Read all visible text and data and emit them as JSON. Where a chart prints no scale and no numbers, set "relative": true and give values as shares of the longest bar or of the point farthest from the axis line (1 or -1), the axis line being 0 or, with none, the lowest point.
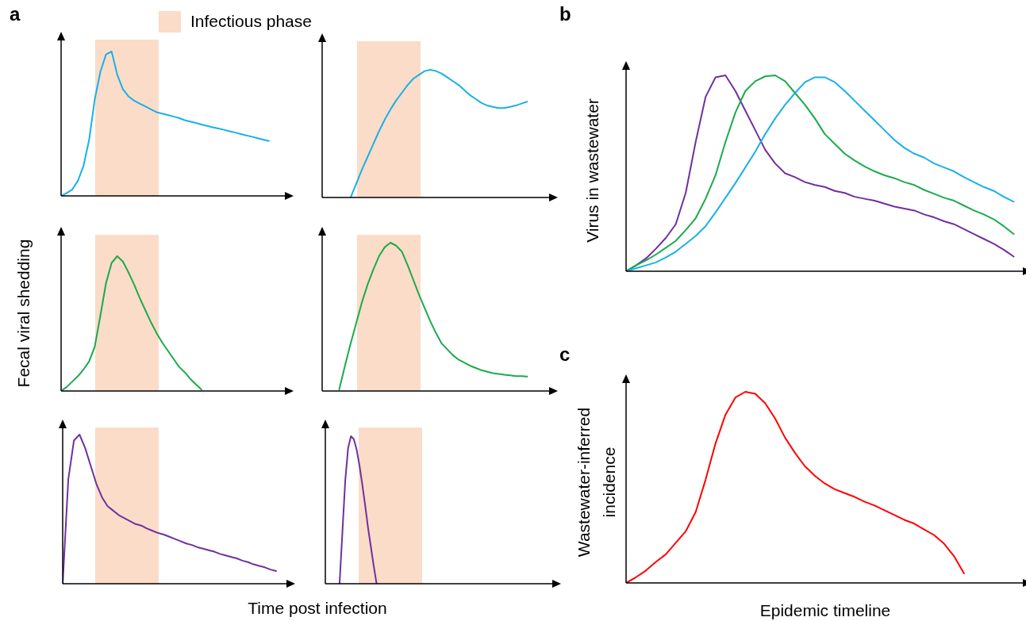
{
  "chart_data": [
    {
      "type": "line",
      "relative": true,
      "annotations": [
        "a",
        "Infectious phase"
      ],
      "tick_labels": false,
      "categories": [
        null,
        null,
        null,
        null,
        null,
        null,
        null,
        null,
        null,
        null,
        null,
        null,
        null,
        null,
        null,
        null,
        null,
        null,
        null,
        null,
        null,
        null,
        null,
        null,
        null,
        null,
        null,
        null,
        null,
        null,
        null,
        null,
        null,
        null,
        null,
        null,
        null,
        null,
        null,
        null,
        null
      ],
      "series": [
        {
          "color": "#1ab0e8",
          "values": [
            0,
            0.02,
            0.045,
            0.105,
            0.21,
            0.39,
            0.67,
            0.86,
            0.98,
            1,
            0.84,
            0.74,
            0.69,
            0.66,
            0.64,
            0.62,
            0.6,
            0.58,
            0.57,
            0.56,
            0.55,
            0.54,
            0.525,
            0.515,
            0.505,
            0.495,
            0.485,
            0.475,
            0.467,
            0.458,
            0.448,
            0.439,
            0.429,
            0.419,
            0.41,
            0.4,
            0.39,
            0.38,
            null,
            null,
            null
          ]
        }
      ]
    },
    {
      "type": "line",
      "relative": true,
      "tick_labels": false,
      "categories": [
        null,
        null,
        null,
        null,
        null,
        null,
        null,
        null,
        null,
        null,
        null,
        null,
        null,
        null,
        null,
        null,
        null,
        null,
        null,
        null,
        null,
        null,
        null,
        null,
        null,
        null,
        null,
        null,
        null,
        null,
        null,
        null,
        null,
        null,
        null,
        null,
        null,
        null,
        null,
        null,
        null
      ],
      "series": [
        {
          "color": "#1ab0e8",
          "values": [
            null,
            null,
            null,
            null,
            null,
            0,
            0.11,
            0.22,
            0.32,
            0.42,
            0.52,
            0.61,
            0.69,
            0.76,
            0.82,
            0.88,
            0.93,
            0.96,
            0.99,
            1,
            0.99,
            0.97,
            0.94,
            0.91,
            0.88,
            0.84,
            0.8,
            0.77,
            0.74,
            0.72,
            0.71,
            0.7,
            0.7,
            0.71,
            0.72,
            0.735,
            0.75,
            null,
            null,
            null,
            null
          ]
        }
      ]
    },
    {
      "type": "line",
      "relative": true,
      "ylabel": "Fecal viral shedding",
      "tick_labels": false,
      "categories": [
        null,
        null,
        null,
        null,
        null,
        null,
        null,
        null,
        null,
        null,
        null,
        null,
        null,
        null,
        null,
        null,
        null,
        null,
        null,
        null,
        null,
        null,
        null,
        null,
        null,
        null,
        null,
        null,
        null,
        null,
        null,
        null,
        null,
        null,
        null,
        null,
        null,
        null,
        null,
        null,
        null
      ],
      "series": [
        {
          "color": "#1aab4b",
          "values": [
            0,
            0.03,
            0.07,
            0.11,
            0.16,
            0.22,
            0.33,
            0.56,
            0.8,
            0.95,
            1,
            0.96,
            0.88,
            0.79,
            0.69,
            0.6,
            0.51,
            0.43,
            0.36,
            0.3,
            0.24,
            0.18,
            0.14,
            0.09,
            0.05,
            0.01,
            null,
            null,
            null,
            null,
            null,
            null,
            null,
            null,
            null,
            null,
            null,
            null,
            null,
            null,
            null
          ]
        }
      ]
    },
    {
      "type": "line",
      "relative": true,
      "tick_labels": false,
      "categories": [
        null,
        null,
        null,
        null,
        null,
        null,
        null,
        null,
        null,
        null,
        null,
        null,
        null,
        null,
        null,
        null,
        null,
        null,
        null,
        null,
        null,
        null,
        null,
        null,
        null,
        null,
        null,
        null,
        null,
        null,
        null,
        null,
        null,
        null,
        null,
        null,
        null,
        null,
        null,
        null,
        null
      ],
      "series": [
        {
          "color": "#1aab4b",
          "values": [
            null,
            null,
            null,
            0.01,
            0.17,
            0.32,
            0.46,
            0.6,
            0.72,
            0.82,
            0.91,
            0.97,
            1,
            0.98,
            0.94,
            0.85,
            0.75,
            0.65,
            0.56,
            0.47,
            0.39,
            0.32,
            0.28,
            0.24,
            0.21,
            0.19,
            0.17,
            0.155,
            0.14,
            0.13,
            0.12,
            0.115,
            0.11,
            0.105,
            0.1,
            0.1,
            0.097,
            null,
            null,
            null,
            null
          ]
        }
      ]
    },
    {
      "type": "line",
      "relative": true,
      "xlabel": "Time post infection",
      "tick_labels": false,
      "categories": [
        null,
        null,
        null,
        null,
        null,
        null,
        null,
        null,
        null,
        null,
        null,
        null,
        null,
        null,
        null,
        null,
        null,
        null,
        null,
        null,
        null,
        null,
        null,
        null,
        null,
        null,
        null,
        null,
        null,
        null,
        null,
        null,
        null,
        null,
        null,
        null,
        null,
        null,
        null,
        null,
        null
      ],
      "series": [
        {
          "color": "#7030a0",
          "values": [
            0,
            0.7,
            0.96,
            1,
            0.91,
            0.79,
            0.67,
            0.58,
            0.52,
            0.49,
            0.46,
            0.44,
            0.42,
            0.4,
            0.39,
            0.37,
            0.355,
            0.34,
            0.33,
            0.315,
            0.3,
            0.285,
            0.27,
            0.26,
            0.245,
            0.235,
            0.225,
            0.215,
            0.2,
            0.19,
            0.18,
            0.17,
            0.155,
            0.145,
            0.13,
            0.12,
            0.11,
            0.095,
            0.085,
            null,
            null
          ]
        }
      ]
    },
    {
      "type": "line",
      "relative": true,
      "tick_labels": false,
      "categories": [
        null,
        null,
        null,
        null,
        null,
        null,
        null,
        null,
        null,
        null,
        null,
        null,
        null,
        null,
        null,
        null,
        null,
        null,
        null,
        null,
        null,
        null,
        null,
        null,
        null,
        null,
        null,
        null,
        null,
        null,
        null,
        null,
        null,
        null,
        null,
        null,
        null,
        null,
        null,
        null,
        null,
        null,
        null,
        null,
        null,
        null,
        null,
        null,
        null,
        null,
        null,
        null,
        null,
        null,
        null,
        null,
        null,
        null,
        null,
        null,
        null,
        null,
        null,
        null,
        null,
        null,
        null,
        null,
        null,
        null,
        null,
        null,
        null,
        null,
        null,
        null,
        null,
        null,
        null,
        null,
        null
      ],
      "series": [
        {
          "color": "#7030a0",
          "values": [
            null,
            null,
            null,
            null,
            null,
            0,
            0.35,
            0.7,
            0.92,
            1,
            0.98,
            0.91,
            0.8,
            0.67,
            0.53,
            0.38,
            0.25,
            0.12,
            0,
            null,
            null,
            null,
            null,
            null,
            null,
            null,
            null,
            null,
            null,
            null,
            null,
            null,
            null,
            null,
            null,
            null,
            null,
            null,
            null,
            null,
            null,
            null,
            null,
            null,
            null,
            null,
            null,
            null,
            null,
            null,
            null,
            null,
            null,
            null,
            null,
            null,
            null,
            null,
            null,
            null,
            null,
            null,
            null,
            null,
            null,
            null,
            null,
            null,
            null,
            null,
            null,
            null,
            null,
            null,
            null,
            null,
            null,
            null,
            null,
            null,
            null
          ]
        }
      ]
    },
    {
      "type": "line",
      "relative": true,
      "annotations": [
        "b"
      ],
      "ylabel": "Virus in wastewater",
      "tick_labels": false,
      "categories": [
        null,
        null,
        null,
        null,
        null,
        null,
        null,
        null,
        null,
        null,
        null,
        null,
        null,
        null,
        null,
        null,
        null,
        null,
        null,
        null,
        null,
        null,
        null,
        null,
        null,
        null,
        null,
        null,
        null,
        null,
        null,
        null,
        null,
        null,
        null,
        null,
        null,
        null,
        null,
        null,
        null
      ],
      "series": [
        {
          "color": "#7030a0",
          "values": [
            0,
            0.03,
            0.065,
            0.115,
            0.17,
            0.24,
            0.4,
            0.66,
            0.89,
            0.99,
            1,
            0.92,
            0.82,
            0.72,
            0.62,
            0.55,
            0.5,
            0.48,
            0.455,
            0.44,
            0.43,
            0.41,
            0.4,
            0.38,
            0.37,
            0.36,
            0.345,
            0.33,
            0.32,
            0.31,
            0.29,
            0.275,
            0.255,
            0.24,
            0.215,
            0.19,
            0.165,
            0.14,
            0.11,
            0.075,
            null
          ]
        },
        {
          "color": "#1aab4b",
          "values": [
            0,
            0.03,
            0.055,
            0.085,
            0.12,
            0.155,
            0.21,
            0.27,
            0.37,
            0.49,
            0.66,
            0.81,
            0.92,
            0.97,
            0.995,
            1,
            0.97,
            0.91,
            0.85,
            0.78,
            0.7,
            0.65,
            0.6,
            0.565,
            0.535,
            0.51,
            0.49,
            0.475,
            0.455,
            0.44,
            0.415,
            0.395,
            0.375,
            0.36,
            0.335,
            0.31,
            0.29,
            0.265,
            0.23,
            0.19,
            null
          ]
        },
        {
          "color": "#1ab0e8",
          "values": [
            0,
            0.015,
            0.03,
            0.045,
            0.07,
            0.1,
            0.14,
            0.18,
            0.23,
            0.3,
            0.375,
            0.45,
            0.53,
            0.61,
            0.7,
            0.78,
            0.85,
            0.91,
            0.965,
            0.99,
            0.99,
            0.965,
            0.92,
            0.87,
            0.82,
            0.77,
            0.72,
            0.67,
            0.63,
            0.6,
            0.58,
            0.55,
            0.53,
            0.51,
            0.48,
            0.455,
            0.43,
            0.41,
            0.38,
            0.355,
            null
          ]
        }
      ]
    },
    {
      "type": "line",
      "relative": true,
      "annotations": [
        "c"
      ],
      "ylabel": "Wastewater-inferred incidence",
      "xlabel": "Epidemic timeline",
      "tick_labels": false,
      "categories": [
        null,
        null,
        null,
        null,
        null,
        null,
        null,
        null,
        null,
        null,
        null,
        null,
        null,
        null,
        null,
        null,
        null,
        null,
        null,
        null,
        null,
        null,
        null,
        null,
        null,
        null,
        null,
        null,
        null,
        null,
        null,
        null,
        null,
        null,
        null,
        null,
        null,
        null,
        null,
        null,
        null
      ],
      "series": [
        {
          "color": "#ff0000",
          "values": [
            0,
            0.03,
            0.065,
            0.11,
            0.15,
            0.21,
            0.27,
            0.37,
            0.54,
            0.73,
            0.88,
            0.97,
            1,
            0.99,
            0.94,
            0.86,
            0.76,
            0.68,
            0.61,
            0.56,
            0.52,
            0.49,
            0.47,
            0.45,
            0.425,
            0.405,
            0.38,
            0.355,
            0.33,
            0.31,
            0.28,
            0.25,
            0.205,
            0.14,
            0.05,
            null,
            null,
            null,
            null,
            null,
            null
          ]
        }
      ]
    }
  ]
}
